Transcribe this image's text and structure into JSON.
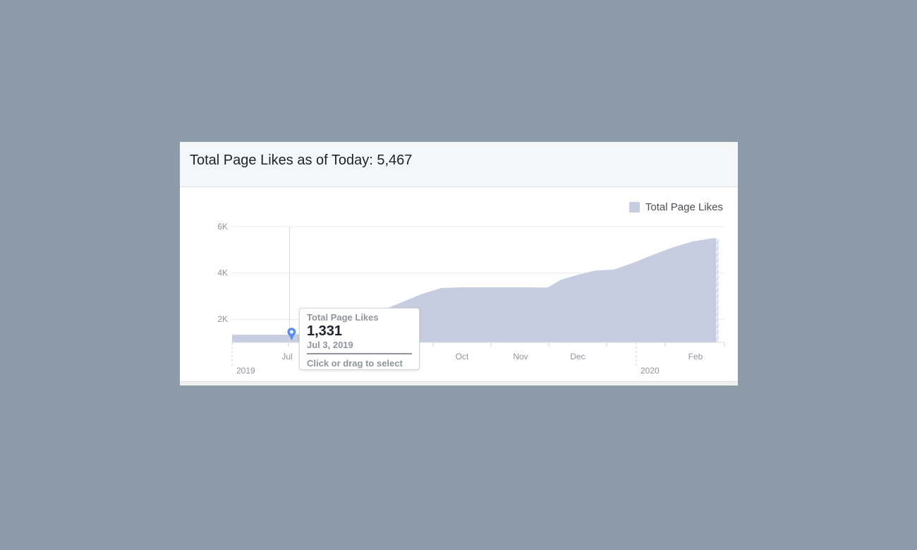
{
  "card": {
    "title": "Total Page Likes as of Today: 5,467"
  },
  "tooltip": {
    "label": "Total Page Likes",
    "value": "1,331",
    "date": "Jul 3, 2019",
    "hint": "Click or drag to select"
  },
  "colors": {
    "area": "#c7cde0",
    "marker": "#5b8ee6",
    "grid": "#e9ebee"
  },
  "icons": {
    "marker": "map-pin-icon"
  },
  "chart_data": {
    "type": "area",
    "title": "Total Page Likes as of Today: 5,467",
    "xlabel": "",
    "ylabel": "",
    "ylim": [
      1000,
      6000
    ],
    "grid": true,
    "legend_position": "top-right",
    "series": [
      {
        "name": "Total Page Likes",
        "x": [
          "2019-06-01",
          "2019-07-03",
          "2019-07-15",
          "2019-08-01",
          "2019-08-20",
          "2019-09-10",
          "2019-09-20",
          "2019-10-01",
          "2019-10-20",
          "2019-11-01",
          "2019-11-15",
          "2019-11-22",
          "2019-11-30",
          "2019-12-10",
          "2019-12-20",
          "2020-01-01",
          "2020-01-10",
          "2020-01-20",
          "2020-01-30",
          "2020-02-10",
          "2020-02-25"
        ],
        "values": [
          1331,
          1331,
          1420,
          1700,
          2400,
          3100,
          3350,
          3380,
          3380,
          3380,
          3370,
          3700,
          3900,
          4100,
          4150,
          4500,
          4800,
          5100,
          5350,
          5500,
          5500
        ]
      }
    ],
    "y_ticks": [
      "2K",
      "4K",
      "6K"
    ],
    "x_ticks": [
      "Jul",
      "Oct",
      "Nov",
      "Dec",
      "Feb"
    ],
    "year_labels": [
      "2019",
      "2020"
    ],
    "highlight": {
      "date": "2019-07-03",
      "value": 1331
    }
  },
  "legend": {
    "label": "Total Page Likes"
  }
}
